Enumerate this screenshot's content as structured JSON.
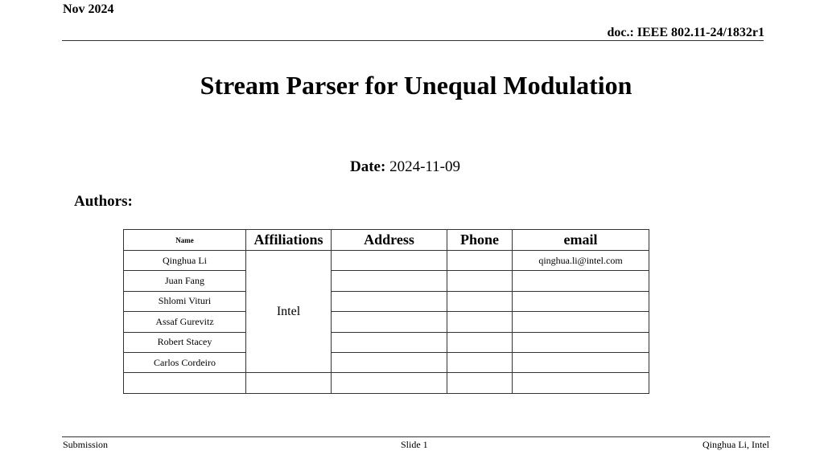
{
  "header": {
    "date": "Nov 2024",
    "doc": "doc.: IEEE 802.11-24/1832r1"
  },
  "title": "Stream Parser for Unequal Modulation",
  "date": {
    "label": "Date:",
    "value": "2024-11-09"
  },
  "authors_label": "Authors:",
  "table": {
    "columns": [
      "Name",
      "Affiliations",
      "Address",
      "Phone",
      "email"
    ],
    "affiliation": "Intel",
    "rows": [
      {
        "name": "Qinghua Li",
        "email": "qinghua.li@intel.com"
      },
      {
        "name": "Juan Fang",
        "email": ""
      },
      {
        "name": "Shlomi Vituri",
        "email": ""
      },
      {
        "name": "Assaf Gurevitz",
        "email": ""
      },
      {
        "name": "Robert Stacey",
        "email": ""
      },
      {
        "name": "Carlos Cordeiro",
        "email": ""
      }
    ]
  },
  "footer": {
    "left": "Submission",
    "center": "Slide 1",
    "right": "Qinghua Li, Intel"
  }
}
